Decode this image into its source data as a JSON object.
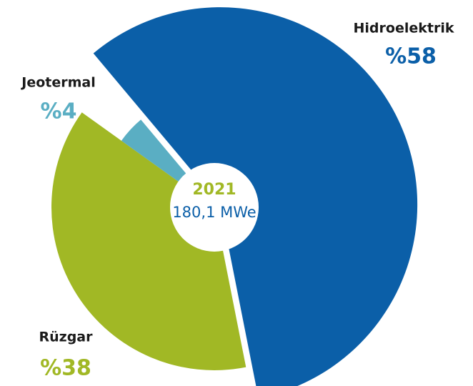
{
  "chart_data": {
    "type": "pie",
    "categories": [
      "Hidroelektrik",
      "Rüzgar",
      "Jeotermal"
    ],
    "values": [
      58,
      38,
      4
    ],
    "value_labels": [
      "%58",
      "%38",
      "%4"
    ],
    "colors": [
      "#0b5fa8",
      "#a1b825",
      "#5aaec3"
    ],
    "center_title": "2021",
    "center_subtitle": "180,1 MWe"
  }
}
